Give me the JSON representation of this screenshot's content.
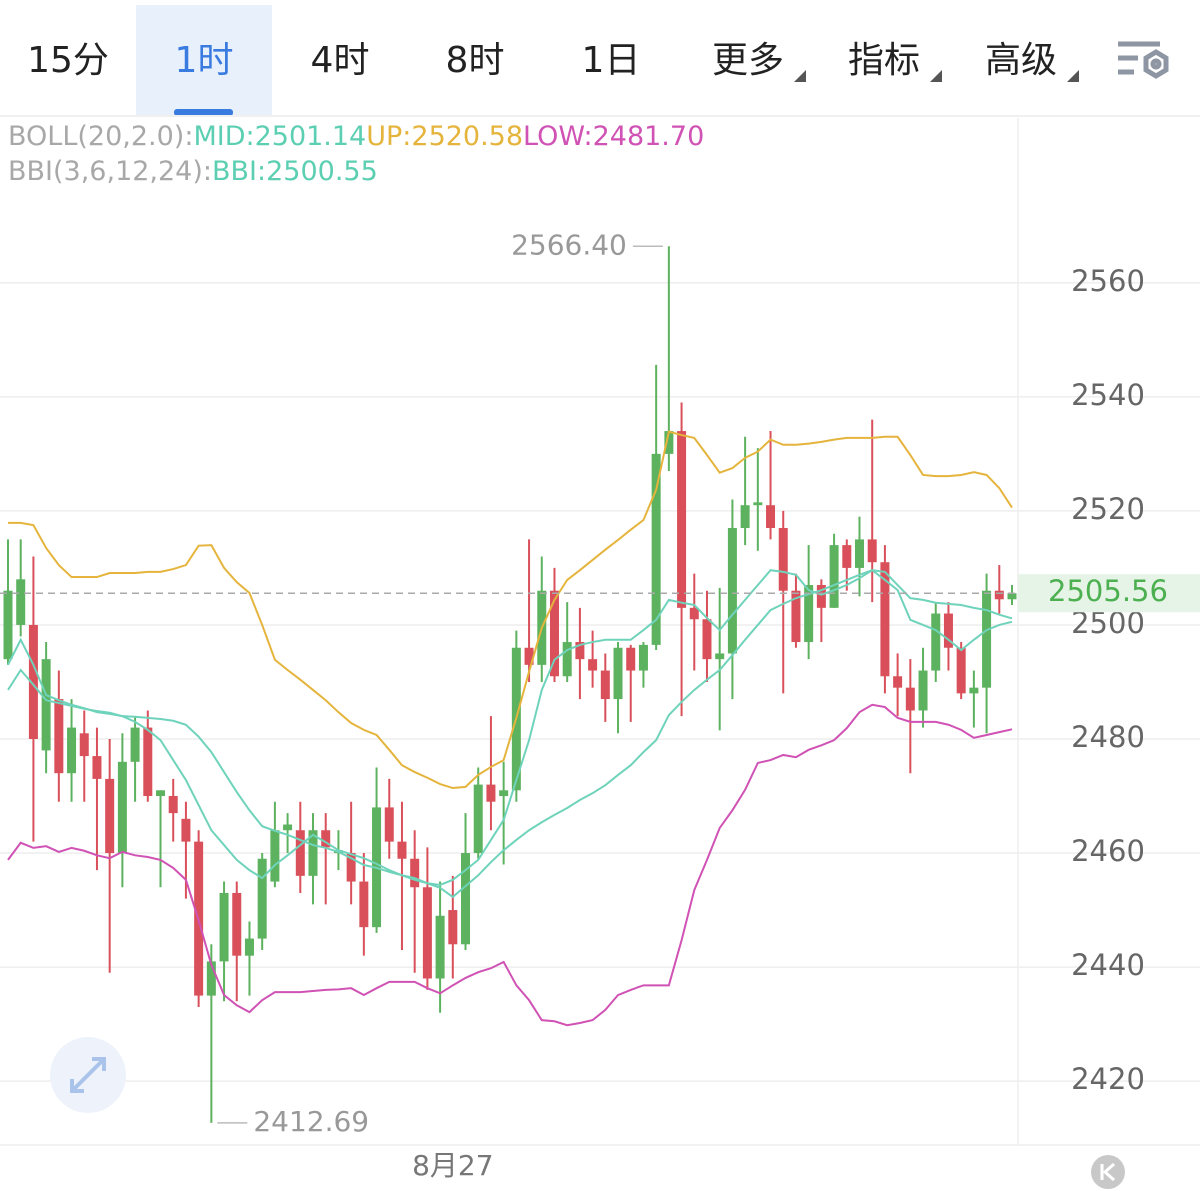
{
  "tabs": {
    "items": [
      "15分",
      "1时",
      "4时",
      "8时",
      "1日",
      "更多",
      "指标",
      "高级"
    ],
    "active": 1
  },
  "chart_data": {
    "type": "candlestick",
    "header": [
      [
        {
          "text": "BOLL(20,2.0):",
          "color": "#a8a8a8"
        },
        {
          "text": "MID:2501.14",
          "color": "#5ccfb2"
        },
        {
          "text": "UP:2520.58",
          "color": "#e5b43c"
        },
        {
          "text": "LOW:2481.70",
          "color": "#d052b4"
        }
      ],
      [
        {
          "text": "BBI(3,6,12,24):",
          "color": "#a8a8a8"
        },
        {
          "text": "BBI:2500.55",
          "color": "#5ccfb2"
        }
      ]
    ],
    "categories": [
      null,
      null,
      null,
      null,
      null,
      null,
      null,
      null,
      null,
      null,
      null,
      null,
      null,
      null,
      null,
      null,
      null,
      null,
      null,
      null,
      null,
      null,
      null,
      null,
      null,
      null,
      null,
      null,
      null,
      null,
      null,
      null,
      null,
      null,
      null,
      "8月27",
      null,
      null,
      null,
      null,
      null,
      null,
      null,
      null,
      null,
      null,
      null,
      null,
      null,
      null,
      null,
      null,
      null,
      null,
      null,
      null,
      null,
      null,
      null,
      null,
      null,
      null,
      null,
      null,
      null,
      null,
      null,
      null,
      null,
      null,
      null,
      null,
      null,
      null,
      null,
      null,
      null,
      null,
      null,
      null
    ],
    "open": [
      2494,
      2500,
      2500,
      2478,
      2487,
      2474,
      2481,
      2477,
      2473,
      2460,
      2476,
      2482,
      2470,
      2470,
      2466,
      2462,
      2435,
      2441,
      2453,
      2442,
      2445,
      2455,
      2464,
      2464,
      2456,
      2464,
      2460,
      2460,
      2455,
      2447,
      2468,
      2462,
      2459,
      2454,
      2438,
      2450,
      2444,
      2460,
      2472,
      2470,
      2471,
      2496,
      2493,
      2506,
      2491,
      2497,
      2494,
      2492,
      2487,
      2496,
      2492,
      2496.5,
      2530,
      2534,
      2503,
      2501,
      2494,
      2495,
      2517,
      2521,
      2521,
      2517,
      2506,
      2497,
      2507,
      2503,
      2514,
      2510,
      2515,
      2511,
      2491,
      2489,
      2485,
      2492,
      2502,
      2496,
      2488,
      2489,
      2506,
      2504.5
    ],
    "high": [
      2515,
      2515,
      2512,
      2497,
      2492,
      2487,
      2485,
      2482,
      2480,
      2481,
      2484,
      2485,
      2471,
      2473,
      2469,
      2464,
      2444,
      2455,
      2455,
      2448,
      2460,
      2469,
      2467,
      2469,
      2467,
      2467,
      2464,
      2469,
      2460,
      2475,
      2473,
      2469,
      2464,
      2461,
      2455,
      2456,
      2467,
      2475,
      2484,
      2476,
      2499,
      2515,
      2512,
      2510,
      2504,
      2503,
      2499,
      2495,
      2497,
      2496.5,
      2497,
      2545.6,
      2566.4,
      2539,
      2509,
      2506,
      2506.5,
      2522,
      2533,
      2531,
      2534,
      2520,
      2509,
      2514,
      2508,
      2516,
      2515,
      2519,
      2536,
      2514,
      2495,
      2494,
      2496,
      2504,
      2504,
      2497,
      2492,
      2509,
      2510.5,
      2507
    ],
    "low": [
      2493,
      2498,
      2462,
      2474,
      2469,
      2469,
      2469,
      2457,
      2439,
      2454,
      2469,
      2469,
      2454,
      2462,
      2452,
      2433,
      2412.69,
      2434,
      2434,
      2435,
      2443,
      2454,
      2460,
      2453,
      2451,
      2451,
      2457,
      2451,
      2442,
      2446,
      2459,
      2443,
      2439,
      2436,
      2432,
      2438,
      2443,
      2459,
      2464,
      2458,
      2469,
      2490,
      2490,
      2490,
      2490,
      2487,
      2489,
      2483,
      2481,
      2483,
      2489,
      2495.6,
      2527,
      2484,
      2492,
      2490,
      2481.5,
      2487,
      2514,
      2513,
      2515,
      2488,
      2496,
      2494,
      2497,
      2503,
      2506,
      2505,
      2504,
      2488,
      2484,
      2474,
      2482,
      2490,
      2492,
      2487,
      2482,
      2481,
      2502,
      2503.5
    ],
    "close": [
      2506,
      2508,
      2480,
      2494,
      2474,
      2482,
      2477,
      2473,
      2460,
      2476,
      2482,
      2470,
      2471,
      2467,
      2462,
      2435,
      2441,
      2453,
      2442,
      2445,
      2459,
      2464,
      2465,
      2456,
      2464,
      2461,
      2460.5,
      2455,
      2447,
      2468,
      2462,
      2459,
      2454,
      2438,
      2449,
      2444,
      2460,
      2472,
      2469,
      2471,
      2496,
      2493,
      2506,
      2491,
      2497,
      2494,
      2492,
      2487,
      2496,
      2492,
      2496.5,
      2530,
      2534,
      2503,
      2501,
      2494,
      2495,
      2517,
      2521,
      2521.5,
      2517,
      2506,
      2497,
      2507,
      2503,
      2514,
      2510,
      2515,
      2511,
      2491,
      2489,
      2485,
      2492,
      2502,
      2496,
      2488,
      2489,
      2506,
      2504.5,
      2505.56
    ],
    "up_color": "#5cb25e",
    "down_color": "#d9505a",
    "series": [
      {
        "name": "UP",
        "color": "#e5b43c",
        "values": [
          2517.9,
          2517.9,
          2517.5,
          2513.5,
          2510.5,
          2508.4,
          2508.4,
          2508.4,
          2509.1,
          2509.1,
          2509.1,
          2509.3,
          2509.3,
          2509.8,
          2510.5,
          2513.9,
          2514.0,
          2510.0,
          2507.5,
          2505.6,
          2500.0,
          2493.9,
          2492.1,
          2490.4,
          2488.6,
          2486.8,
          2484.7,
          2482.8,
          2481.6,
          2480.7,
          2478.1,
          2475.4,
          2474.2,
          2473.2,
          2472.1,
          2471.4,
          2471.6,
          2473.7,
          2475.1,
          2476.3,
          2483.7,
          2491.8,
          2499.5,
          2504.4,
          2507.9,
          2509.6,
          2511.4,
          2513.2,
          2514.9,
          2516.7,
          2518.4,
          2523.7,
          2533.9,
          2533.3,
          2532.8,
          2529.8,
          2526.7,
          2527.5,
          2529.3,
          2530.4,
          2532.5,
          2531.6,
          2531.6,
          2531.8,
          2532.1,
          2532.5,
          2532.8,
          2532.8,
          2532.8,
          2533.0,
          2533.0,
          2529.8,
          2526.3,
          2526.1,
          2526.1,
          2526.3,
          2526.8,
          2526.3,
          2524.0,
          2520.58
        ]
      },
      {
        "name": "MID",
        "color": "#6fd3bb",
        "values": [
          2488.6,
          2492.1,
          2489.5,
          2486.8,
          2486.3,
          2485.8,
          2485.3,
          2484.9,
          2484.6,
          2484.0,
          2483.9,
          2483.7,
          2483.5,
          2483.2,
          2482.5,
          2480.4,
          2477.7,
          2474.2,
          2470.7,
          2467.5,
          2464.7,
          2463.9,
          2463.2,
          2462.3,
          2461.4,
          2460.9,
          2460.2,
          2459.1,
          2457.9,
          2457.4,
          2456.7,
          2456.1,
          2455.6,
          2454.7,
          2453.9,
          2452.3,
          2454.2,
          2456.1,
          2458.4,
          2460.5,
          2462.3,
          2464.0,
          2465.4,
          2466.7,
          2467.9,
          2469.3,
          2470.5,
          2471.9,
          2473.7,
          2475.4,
          2477.7,
          2479.8,
          2484.2,
          2486.5,
          2488.6,
          2490.4,
          2492.1,
          2494.7,
          2497.4,
          2500.0,
          2502.6,
          2503.7,
          2504.7,
          2505.4,
          2506.1,
          2507.0,
          2507.9,
          2508.8,
          2509.6,
          2509.3,
          2507.0,
          2504.7,
          2504.4,
          2503.9,
          2503.7,
          2503.5,
          2503.0,
          2502.6,
          2501.8,
          2501.14
        ]
      },
      {
        "name": "LOW",
        "color": "#d052b4",
        "values": [
          2458.8,
          2461.8,
          2460.9,
          2461.2,
          2460.2,
          2460.9,
          2460.4,
          2459.6,
          2459.1,
          2460.2,
          2459.6,
          2459.3,
          2458.8,
          2457.4,
          2455.3,
          2448.2,
          2440.4,
          2435.1,
          2433.3,
          2432.1,
          2434.2,
          2435.6,
          2435.6,
          2435.6,
          2435.8,
          2436.0,
          2436.1,
          2436.3,
          2435.1,
          2436.3,
          2437.4,
          2437.4,
          2437.4,
          2436.3,
          2435.4,
          2436.8,
          2438.1,
          2439.1,
          2439.8,
          2440.9,
          2436.8,
          2434.2,
          2430.7,
          2430.5,
          2429.8,
          2430.2,
          2430.7,
          2432.5,
          2435.1,
          2436.0,
          2436.8,
          2436.8,
          2436.8,
          2444.7,
          2453.5,
          2458.8,
          2464.4,
          2467.5,
          2471.1,
          2475.8,
          2476.3,
          2477.2,
          2476.8,
          2478.1,
          2478.9,
          2479.8,
          2481.9,
          2484.7,
          2486.0,
          2485.6,
          2483.7,
          2483.0,
          2483.0,
          2483.0,
          2482.5,
          2481.6,
          2480.2,
          2480.7,
          2481.2,
          2481.7
        ]
      },
      {
        "name": "BBI",
        "color": "#6fd3bb",
        "values": [
          2493.0,
          2497.4,
          2493.0,
          2487.7,
          2486.8,
          2486.0,
          2485.4,
          2484.7,
          2484.4,
          2484.0,
          2483.0,
          2481.6,
          2479.8,
          2476.3,
          2472.8,
          2468.4,
          2464.0,
          2461.4,
          2458.8,
          2457.0,
          2455.6,
          2457.9,
          2459.6,
          2461.4,
          2463.2,
          2461.9,
          2460.5,
          2459.8,
          2459.1,
          2458.1,
          2457.0,
          2456.1,
          2455.3,
          2454.7,
          2454.4,
          2455.3,
          2457.0,
          2458.8,
          2462.3,
          2465.8,
          2472.8,
          2479.8,
          2488.6,
          2493.9,
          2495.6,
          2496.5,
          2497.0,
          2497.4,
          2497.4,
          2497.4,
          2499.1,
          2500.9,
          2504.4,
          2503.9,
          2503.5,
          2501.2,
          2499.1,
          2501.8,
          2504.4,
          2507.0,
          2509.6,
          2509.3,
          2508.8,
          2506.1,
          2505.3,
          2506.1,
          2507.0,
          2508.2,
          2509.6,
          2507.9,
          2506.1,
          2500.9,
          2500.0,
          2499.1,
          2497.4,
          2495.6,
          2497.4,
          2499.1,
          2500.0,
          2500.55
        ]
      }
    ],
    "max_label": {
      "value": 2566.4,
      "label": "2566.40"
    },
    "min_label": {
      "value": 2412.69,
      "label": "2412.69"
    },
    "last_price": 2505.56,
    "ylim": [
      2408.8,
      2588.9
    ],
    "yticks": [
      2420,
      2440,
      2460,
      2480,
      2500,
      2520,
      2540,
      2560
    ],
    "grid": true
  }
}
